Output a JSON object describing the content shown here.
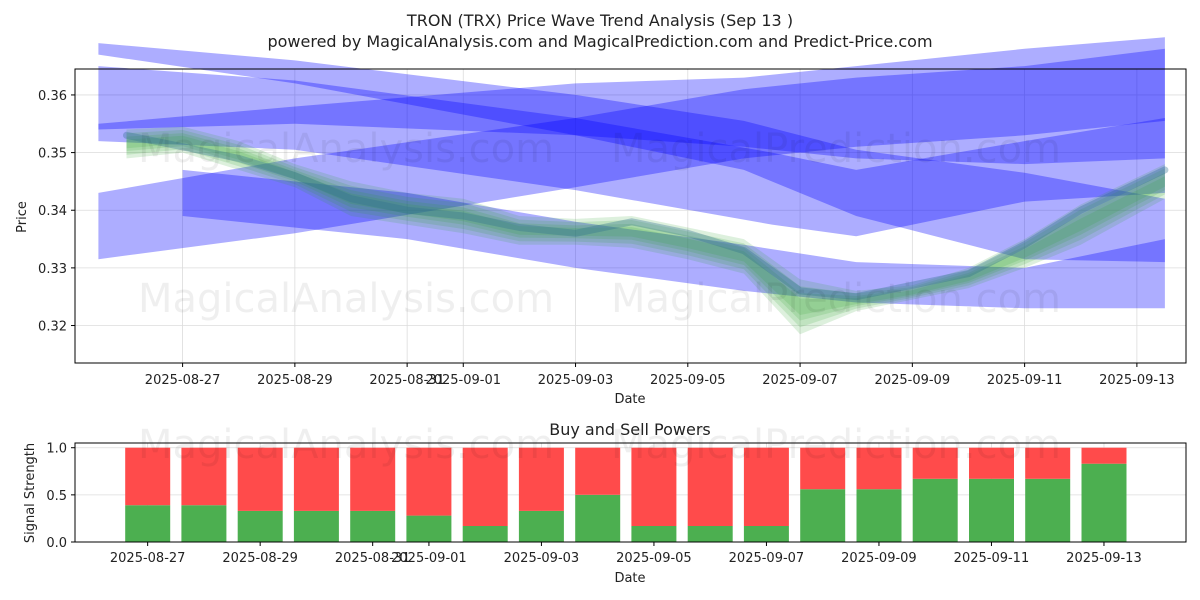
{
  "colors": {
    "band_blue": "#0000ff",
    "band_green": "#2ca02c",
    "buy_green": "#4caf50",
    "sell_red": "#ff4b4b",
    "grid": "#dcdcdc",
    "wave_dark": "#2f6f8f"
  },
  "watermarks": [
    "MagicalAnalysis.com",
    "MagicalPrediction.com"
  ],
  "chart_data": [
    {
      "type": "line",
      "title": "TRON (TRX) Price Wave Trend Analysis (Sep 13 )",
      "subtitle": "powered by MagicalAnalysis.com and MagicalPrediction.com and Predict-Price.com",
      "xlabel": "Date",
      "ylabel": "Price",
      "ylim": [
        0.3135,
        0.3645
      ],
      "xlim": [
        "2025-08-25T02:00",
        "2025-09-13T21:00"
      ],
      "x_ticks": [
        "2025-08-27",
        "2025-08-29",
        "2025-08-31",
        "2025-09-01",
        "2025-09-03",
        "2025-09-05",
        "2025-09-07",
        "2025-09-09",
        "2025-09-11",
        "2025-09-13"
      ],
      "y_ticks": [
        0.32,
        0.33,
        0.34,
        0.35,
        0.36
      ],
      "y_tick_labels": [
        "0.32",
        "0.33",
        "0.34",
        "0.35",
        "0.36"
      ],
      "grid": true,
      "blue_bands": [
        {
          "x": [
            "2025-08-25T12:00",
            "2025-08-29T00:00",
            "2025-09-03T00:00",
            "2025-09-06T12:00",
            "2025-09-08T00:00",
            "2025-09-11T00:00",
            "2025-09-13T12:00"
          ],
          "upper": [
            0.365,
            0.3625,
            0.356,
            0.35,
            0.347,
            0.352,
            0.356
          ],
          "lower": [
            0.352,
            0.3505,
            0.3435,
            0.3375,
            0.3355,
            0.3415,
            0.343
          ]
        },
        {
          "x": [
            "2025-08-25T12:00",
            "2025-08-29T00:00",
            "2025-09-03T00:00",
            "2025-09-06T00:00",
            "2025-09-08T00:00",
            "2025-09-11T00:00",
            "2025-09-13T12:00"
          ],
          "upper": [
            0.355,
            0.358,
            0.362,
            0.363,
            0.365,
            0.368,
            0.37
          ],
          "lower": [
            0.354,
            0.355,
            0.353,
            0.351,
            0.349,
            0.348,
            0.349
          ]
        },
        {
          "x": [
            "2025-08-25T12:00",
            "2025-08-29T00:00",
            "2025-09-03T00:00",
            "2025-09-06T00:00",
            "2025-09-08T00:00",
            "2025-09-11T00:00",
            "2025-09-13T12:00"
          ],
          "upper": [
            0.369,
            0.366,
            0.36,
            0.3555,
            0.3505,
            0.3465,
            0.342
          ],
          "lower": [
            0.367,
            0.362,
            0.353,
            0.347,
            0.339,
            0.3315,
            0.331
          ]
        },
        {
          "x": [
            "2025-08-25T12:00",
            "2025-08-29T00:00",
            "2025-09-03T00:00",
            "2025-09-06T00:00",
            "2025-09-08T00:00",
            "2025-09-11T00:00",
            "2025-09-13T12:00"
          ],
          "upper": [
            0.343,
            0.349,
            0.356,
            0.361,
            0.363,
            0.365,
            0.368
          ],
          "lower": [
            0.3315,
            0.336,
            0.344,
            0.349,
            0.351,
            0.353,
            0.3555
          ]
        },
        {
          "x": [
            "2025-08-27T00:00",
            "2025-08-31T00:00",
            "2025-09-03T00:00",
            "2025-09-06T00:00",
            "2025-09-08T00:00",
            "2025-09-11T00:00",
            "2025-09-13T12:00"
          ],
          "upper": [
            0.347,
            0.343,
            0.338,
            0.334,
            0.331,
            0.33,
            0.335
          ],
          "lower": [
            0.339,
            0.335,
            0.33,
            0.326,
            0.324,
            0.323,
            0.323
          ]
        }
      ],
      "price_wave": {
        "x": [
          "2025-08-26T00:00",
          "2025-08-27T00:00",
          "2025-08-28T00:00",
          "2025-08-29T00:00",
          "2025-08-30T00:00",
          "2025-08-31T00:00",
          "2025-09-01T00:00",
          "2025-09-02T00:00",
          "2025-09-03T00:00",
          "2025-09-04T00:00",
          "2025-09-05T00:00",
          "2025-09-06T00:00",
          "2025-09-07T00:00",
          "2025-09-08T00:00",
          "2025-09-09T00:00",
          "2025-09-10T00:00",
          "2025-09-11T00:00",
          "2025-09-12T00:00",
          "2025-09-13T12:00"
        ],
        "y": [
          0.353,
          0.351,
          0.349,
          0.346,
          0.342,
          0.34,
          0.339,
          0.337,
          0.336,
          0.338,
          0.336,
          0.333,
          0.326,
          0.325,
          0.327,
          0.329,
          0.334,
          0.34,
          0.347
        ]
      },
      "green_band": {
        "x": [
          "2025-08-26T00:00",
          "2025-08-27T00:00",
          "2025-08-28T00:00",
          "2025-08-29T00:00",
          "2025-08-30T00:00",
          "2025-08-31T00:00",
          "2025-09-01T00:00",
          "2025-09-02T00:00",
          "2025-09-03T00:00",
          "2025-09-04T00:00",
          "2025-09-05T00:00",
          "2025-09-06T00:00",
          "2025-09-07T00:00",
          "2025-09-08T00:00",
          "2025-09-09T00:00",
          "2025-09-10T00:00",
          "2025-09-11T00:00",
          "2025-09-12T00:00",
          "2025-09-13T12:00"
        ],
        "upper": [
          0.354,
          0.3545,
          0.352,
          0.348,
          0.345,
          0.343,
          0.342,
          0.339,
          0.3385,
          0.339,
          0.337,
          0.335,
          0.328,
          0.326,
          0.327,
          0.33,
          0.335,
          0.341,
          0.348
        ],
        "lower": [
          0.349,
          0.35,
          0.347,
          0.344,
          0.339,
          0.3375,
          0.336,
          0.334,
          0.334,
          0.3335,
          0.3315,
          0.329,
          0.3185,
          0.3225,
          0.3245,
          0.3265,
          0.33,
          0.334,
          0.342
        ]
      }
    },
    {
      "type": "bar",
      "title": "Buy and Sell Powers",
      "xlabel": "Date",
      "ylabel": "Signal Strength",
      "ylim": [
        0,
        1.05
      ],
      "y_ticks": [
        0.0,
        0.5,
        1.0
      ],
      "y_tick_labels": [
        "0.0",
        "0.5",
        "1.0"
      ],
      "x_ticks": [
        "2025-08-27",
        "2025-08-29",
        "2025-08-31",
        "2025-09-01",
        "2025-09-03",
        "2025-09-05",
        "2025-09-07",
        "2025-09-09",
        "2025-09-11",
        "2025-09-13"
      ],
      "categories": [
        "2025-08-27",
        "2025-08-28",
        "2025-08-29",
        "2025-08-30",
        "2025-08-31",
        "2025-09-01",
        "2025-09-02",
        "2025-09-03",
        "2025-09-04",
        "2025-09-05",
        "2025-09-06",
        "2025-09-07",
        "2025-09-08",
        "2025-09-09",
        "2025-09-10",
        "2025-09-11",
        "2025-09-12",
        "2025-09-13"
      ],
      "series": [
        {
          "values": [
            0.39,
            0.39,
            0.33,
            0.33,
            0.33,
            0.28,
            0.17,
            0.33,
            0.5,
            0.17,
            0.17,
            0.17,
            0.56,
            0.56,
            0.67,
            0.67,
            0.67,
            0.83
          ]
        },
        {
          "values": [
            0.61,
            0.61,
            0.67,
            0.67,
            0.67,
            0.72,
            0.83,
            0.67,
            0.5,
            0.83,
            0.83,
            0.83,
            0.44,
            0.44,
            0.33,
            0.33,
            0.33,
            0.17
          ]
        }
      ],
      "grid": true
    }
  ]
}
